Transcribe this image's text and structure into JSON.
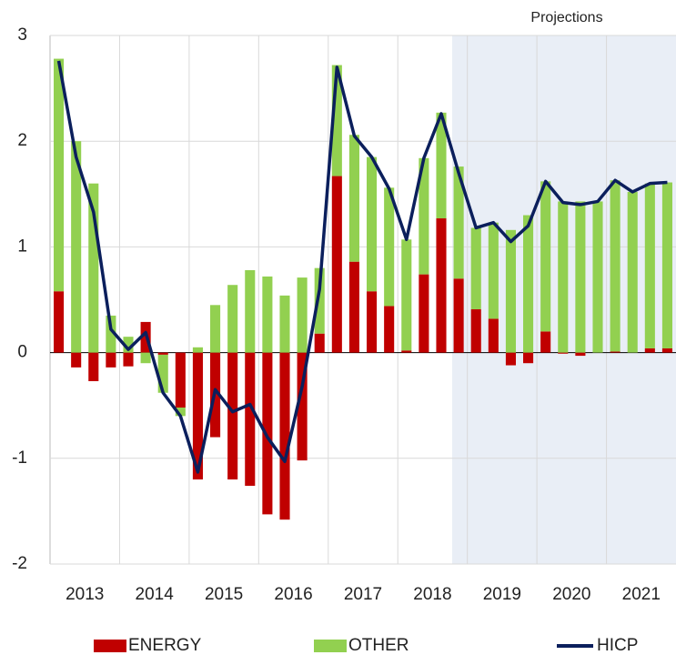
{
  "chart_data": {
    "type": "bar-line",
    "annotation": "Projections",
    "categories": [
      null,
      "2013",
      null,
      null,
      null,
      "2014",
      null,
      null,
      null,
      "2015",
      null,
      null,
      null,
      "2016",
      null,
      null,
      null,
      "2017",
      null,
      null,
      null,
      "2018",
      null,
      null,
      null,
      "2019",
      null,
      null,
      null,
      "2020",
      null,
      null,
      null,
      "2021",
      null,
      null
    ],
    "series": [
      {
        "name": "ENERGY",
        "type": "bar",
        "color": "#c00000",
        "values": [
          0.58,
          -0.14,
          -0.27,
          -0.14,
          -0.13,
          0.29,
          -0.02,
          -0.52,
          -1.2,
          -0.8,
          -1.2,
          -1.26,
          -1.53,
          -1.58,
          -1.02,
          0.18,
          1.67,
          0.86,
          0.58,
          0.44,
          0.02,
          0.74,
          1.27,
          0.7,
          0.41,
          0.32,
          -0.12,
          -0.1,
          0.2,
          -0.01,
          -0.03,
          0.0,
          0.01,
          0.0,
          0.04,
          0.04
        ]
      },
      {
        "name": "OTHER",
        "type": "bar",
        "color": "#92d050",
        "values": [
          2.2,
          2.0,
          1.6,
          0.35,
          0.15,
          -0.1,
          -0.36,
          -0.08,
          0.05,
          0.45,
          0.64,
          0.78,
          0.72,
          0.54,
          0.71,
          0.62,
          1.05,
          1.2,
          1.27,
          1.12,
          1.05,
          1.1,
          1.0,
          1.06,
          0.77,
          0.91,
          1.16,
          1.3,
          1.42,
          1.43,
          1.43,
          1.43,
          1.62,
          1.52,
          1.56,
          1.57
        ]
      },
      {
        "name": "HICP",
        "type": "line",
        "color": "#0b1f5c",
        "values": [
          2.76,
          1.85,
          1.33,
          0.22,
          0.03,
          0.19,
          -0.38,
          -0.6,
          -1.13,
          -0.35,
          -0.56,
          -0.49,
          -0.8,
          -1.03,
          -0.32,
          0.6,
          2.7,
          2.05,
          1.85,
          1.55,
          1.07,
          1.84,
          2.26,
          1.7,
          1.18,
          1.23,
          1.05,
          1.2,
          1.62,
          1.42,
          1.4,
          1.43,
          1.63,
          1.52,
          1.6,
          1.61
        ]
      }
    ],
    "ylim": [
      -2,
      3
    ],
    "yticks": [
      -2,
      -1,
      0,
      1,
      2,
      3
    ],
    "grid": true,
    "legend": "bottom"
  }
}
